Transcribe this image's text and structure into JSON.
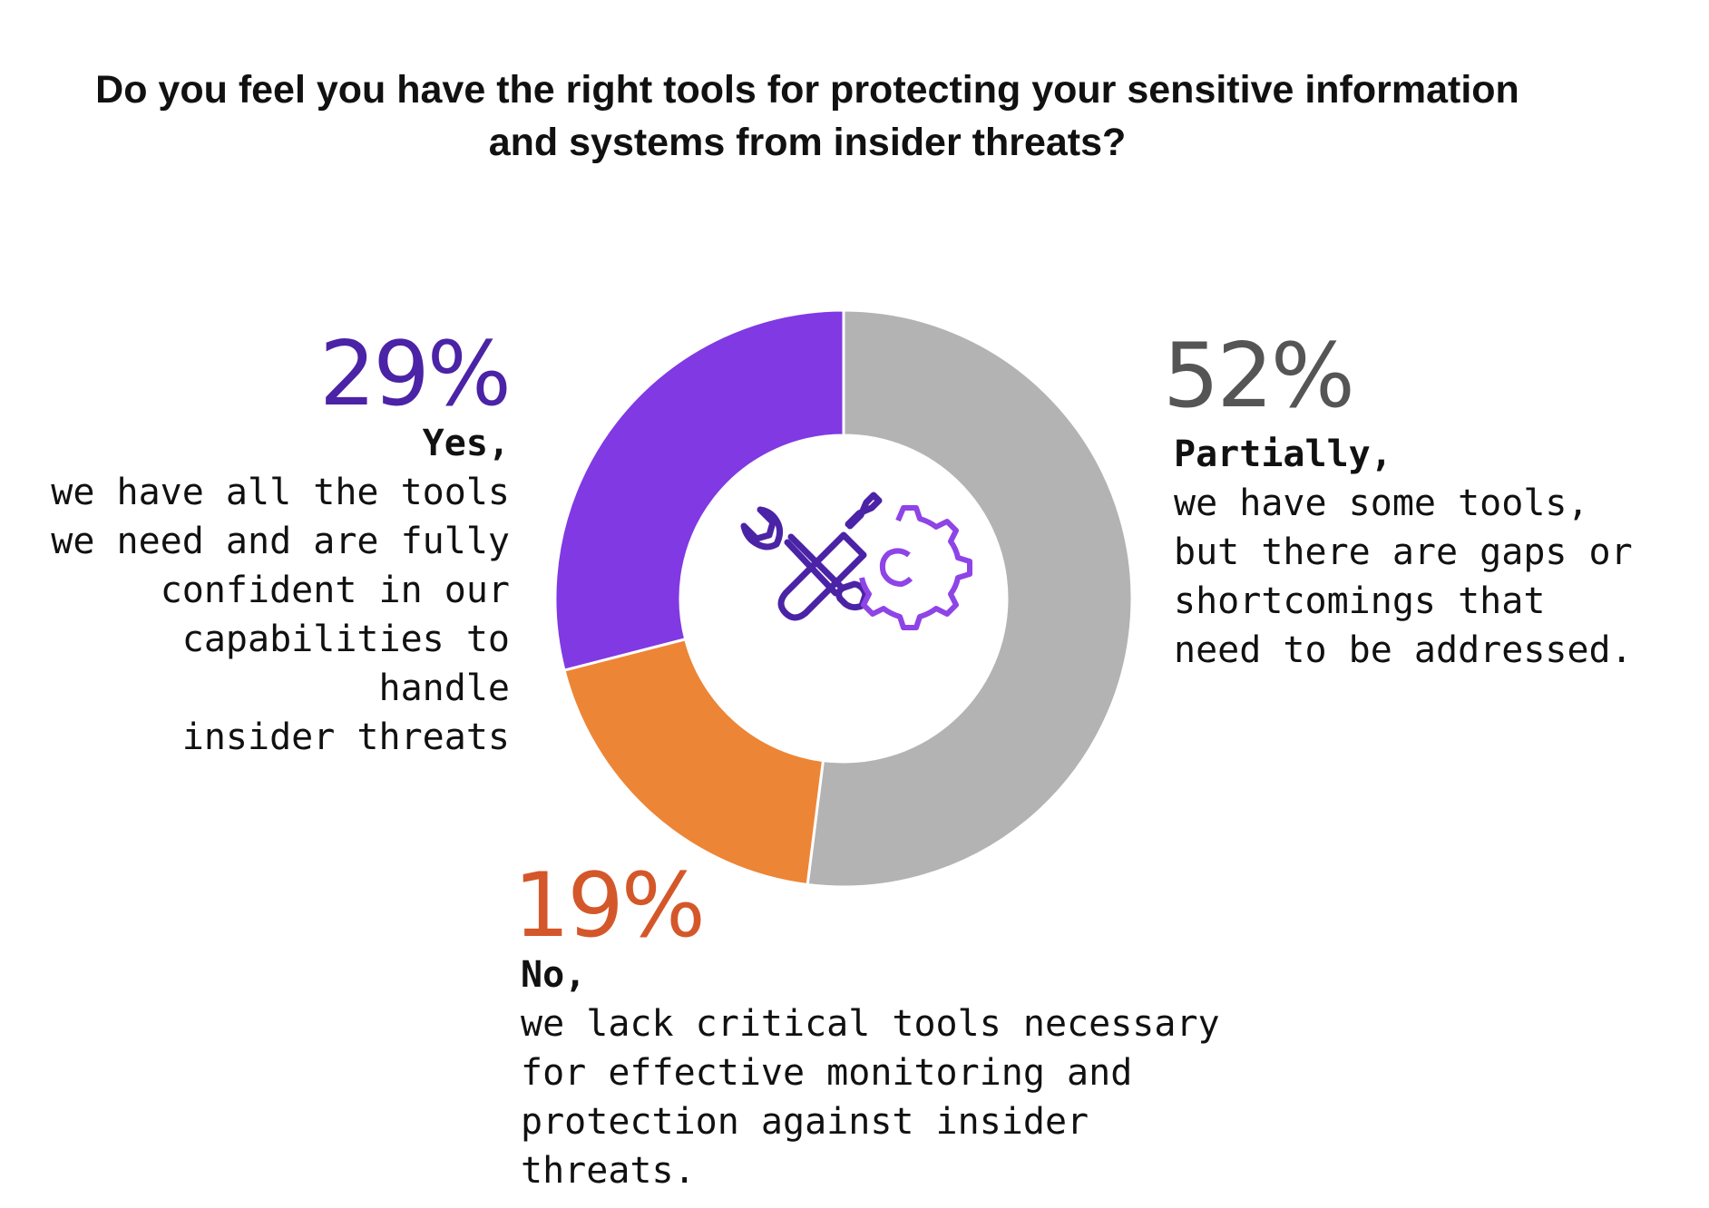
{
  "title_lines": [
    "Do you feel you have the right tools for protecting your sensitive information",
    "and systems from insider threats?"
  ],
  "colors": {
    "partially": "#b3b3b3",
    "no": "#ed8536",
    "yes": "#8039e3",
    "yes_text": "#4b23a6",
    "partially_text": "#555555",
    "no_text": "#d4572a",
    "icon_dark": "#4b23a6",
    "icon_light": "#8e44e6"
  },
  "labels": {
    "yes": {
      "pct": "29%",
      "head": "Yes,",
      "lines": [
        "we have all the tools",
        "we need and are fully",
        "confident in our",
        "capabilities to handle",
        "insider threats"
      ]
    },
    "partially": {
      "pct": "52%",
      "head": "Partially,",
      "lines": [
        "we have some tools,",
        "but there are gaps or",
        "shortcomings that",
        "need to be addressed."
      ]
    },
    "no": {
      "pct": "19%",
      "head": "No,",
      "lines": [
        "we lack critical tools necessary",
        "for effective monitoring and",
        "protection against insider threats."
      ]
    }
  },
  "center_icon": "wrench-screwdriver-gear-icon",
  "chart_data": {
    "type": "pie",
    "donut": true,
    "title": "Do you feel you have the right tools for protecting your sensitive information and systems from insider threats?",
    "categories": [
      "Partially",
      "No",
      "Yes"
    ],
    "values": [
      52,
      19,
      29
    ],
    "unit": "%"
  }
}
